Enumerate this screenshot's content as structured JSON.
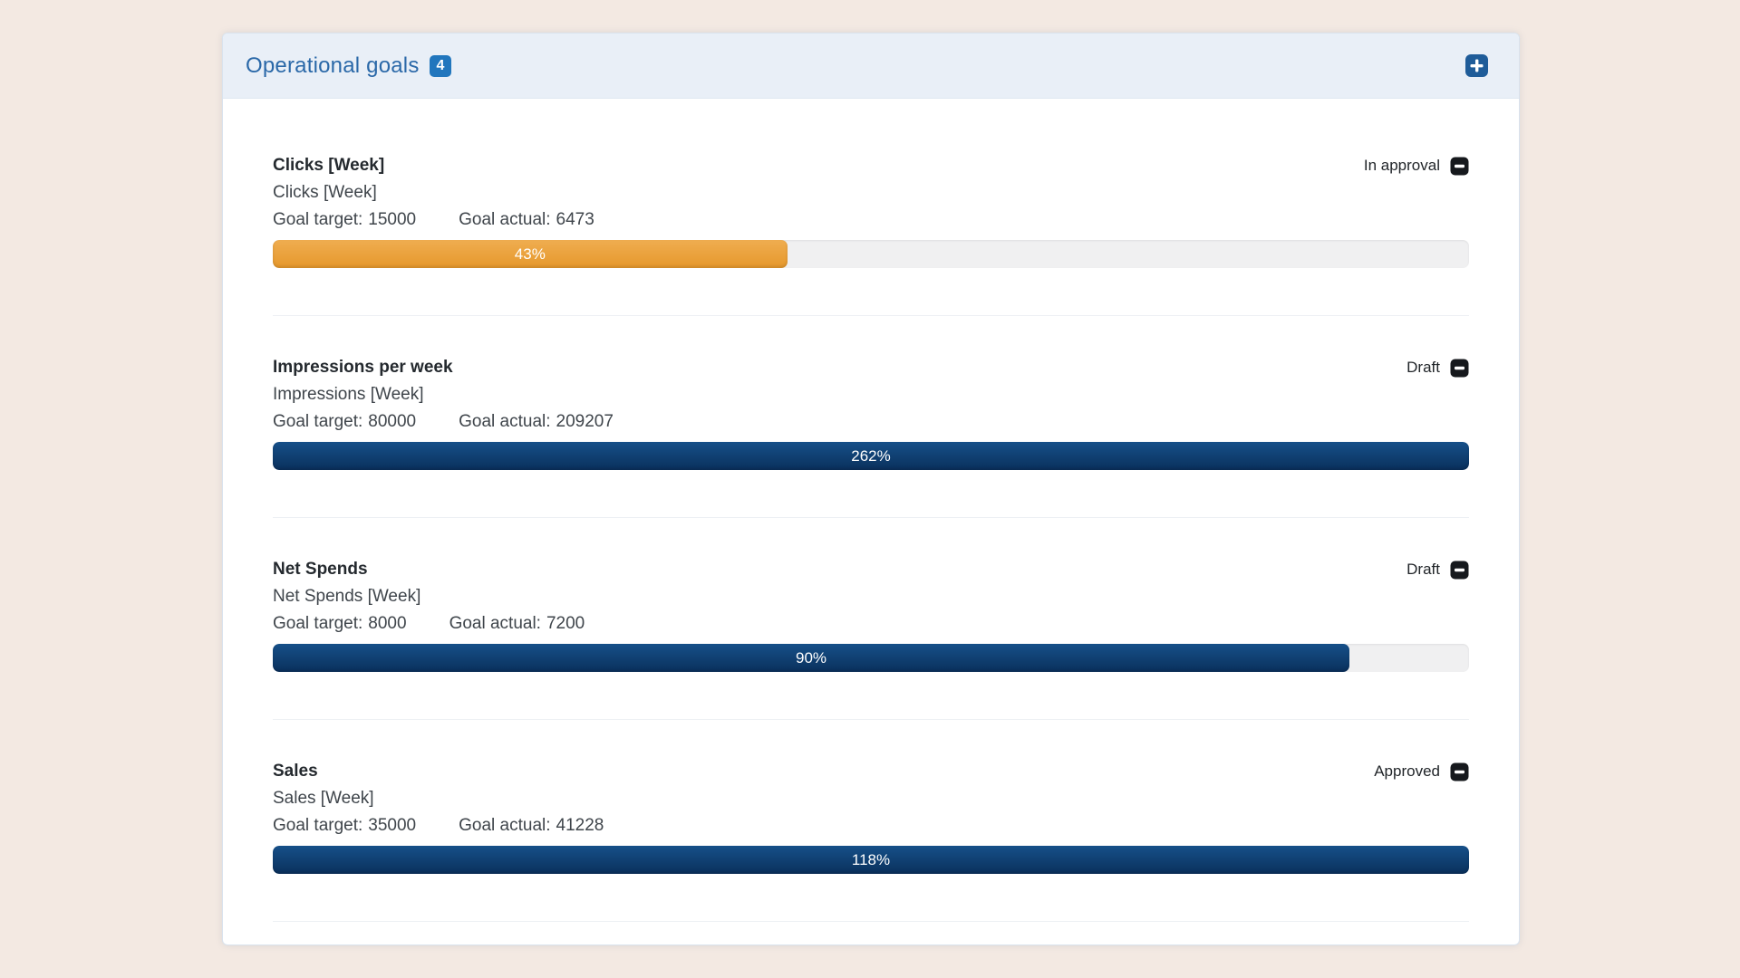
{
  "colors": {
    "page_background": "#f3e9e2",
    "panel_header_background": "#e9eff7",
    "title_blue": "#2a68a8",
    "badge_blue": "#2176bd",
    "add_button_blue": "#1f5c99",
    "remove_button_dark": "#16191d",
    "track_gray": "#f0f0f1",
    "orange_bar": "#e79b31",
    "navy_bar": "#0d3a6b"
  },
  "panel": {
    "header": {
      "title": "Operational goals",
      "count": "4",
      "add_icon": "plus-square-icon"
    },
    "remove_icon": "minus-square-icon",
    "goals": [
      {
        "name": "Clicks [Week]",
        "metric": "Clicks [Week]",
        "goal_target_label": "Goal target:",
        "goal_target_value": "15000",
        "goal_actual_label": "Goal actual:",
        "goal_actual_value": "6473",
        "status": "In approval",
        "progress_label": "43%",
        "progress_fill_percent": 43,
        "bar_gradient": [
          "#efad50",
          "#e6982c"
        ]
      },
      {
        "name": "Impressions per week",
        "metric": "Impressions [Week]",
        "goal_target_label": "Goal target:",
        "goal_target_value": "80000",
        "goal_actual_label": "Goal actual:",
        "goal_actual_value": "209207",
        "status": "Draft",
        "progress_label": "262%",
        "progress_fill_percent": 100,
        "bar_gradient": [
          "#165089",
          "#0a305c"
        ]
      },
      {
        "name": "Net Spends",
        "metric": "Net Spends [Week]",
        "goal_target_label": "Goal target:",
        "goal_target_value": "8000",
        "goal_actual_label": "Goal actual:",
        "goal_actual_value": "7200",
        "status": "Draft",
        "progress_label": "90%",
        "progress_fill_percent": 90,
        "bar_gradient": [
          "#165089",
          "#0a305c"
        ]
      },
      {
        "name": "Sales",
        "metric": "Sales [Week]",
        "goal_target_label": "Goal target:",
        "goal_target_value": "35000",
        "goal_actual_label": "Goal actual:",
        "goal_actual_value": "41228",
        "status": "Approved",
        "progress_label": "118%",
        "progress_fill_percent": 100,
        "bar_gradient": [
          "#165089",
          "#0a305c"
        ]
      }
    ]
  }
}
